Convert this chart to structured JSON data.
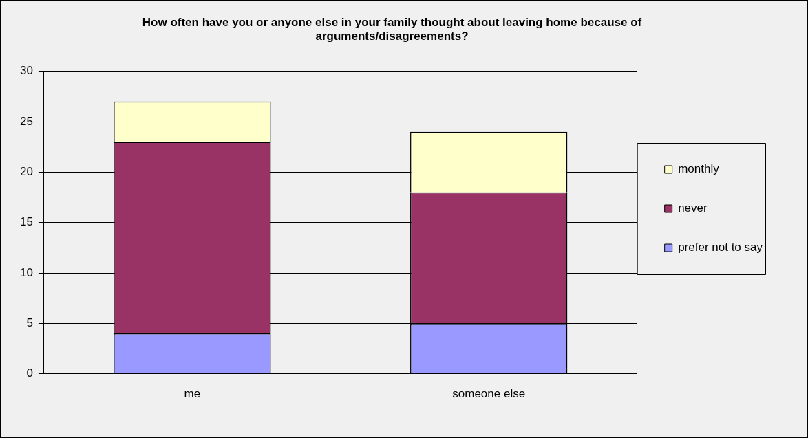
{
  "chart_data": {
    "type": "bar",
    "title": "How often have you or anyone else in your family thought about leaving home because of arguments/disagreements?",
    "categories": [
      "me",
      "someone else"
    ],
    "stacked": true,
    "series": [
      {
        "name": "prefer not to say",
        "color": "#9999ff",
        "values": [
          4,
          5
        ]
      },
      {
        "name": "never",
        "color": "#993366",
        "values": [
          19,
          13
        ]
      },
      {
        "name": "monthly",
        "color": "#ffffcc",
        "values": [
          4,
          6
        ]
      }
    ],
    "ylim": [
      0,
      30
    ],
    "yticks": [
      0,
      5,
      10,
      15,
      20,
      25,
      30
    ],
    "grid": "y",
    "legend": "right"
  }
}
